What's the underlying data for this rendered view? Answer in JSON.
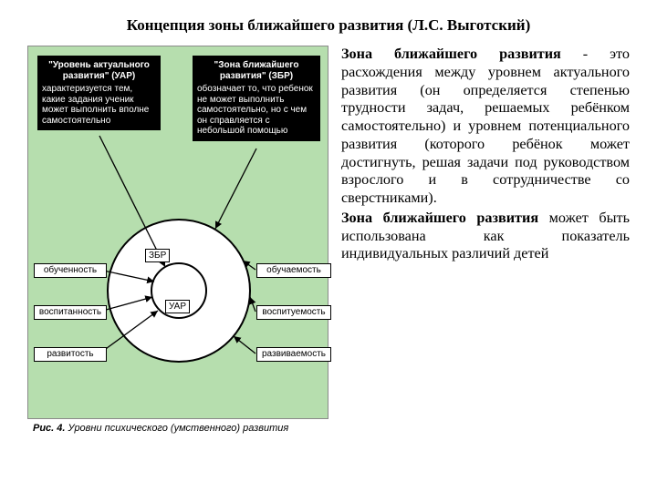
{
  "title": "Концепция зоны ближайшего развития (Л.С. Выготский)",
  "diagram": {
    "bg_color": "#b6deae",
    "caption_bold": "Рис. 4.",
    "caption_rest": "Уровни психического (умственного) развития",
    "top_left": {
      "header": "\"Уровень актуального развития\" (УАР)",
      "body": "характеризуется тем, какие задания ученик может выполнить вполне самостоятельно"
    },
    "top_right": {
      "header": "\"Зона ближайшего развития\" (ЗБР)",
      "body": "обозначает то, что ребенок не может выполнить самостоятельно, но с чем он справляется с небольшой помощью"
    },
    "zbr_label": "ЗБР",
    "uar_label": "УАР",
    "left_boxes": [
      "обученность",
      "воспитанность",
      "развитость"
    ],
    "right_boxes": [
      "обучаемость",
      "воспитуемость",
      "развиваемость"
    ],
    "circle_outer_stroke": "#000000",
    "circle_inner_stroke": "#000000",
    "arrow_color": "#000000"
  },
  "paragraph1_lead": " Зона ближайшего развития",
  "paragraph1_rest": " - это расхождения между уровнем актуального развития (он определяется степенью трудности задач, решаемых ребёнком самостоятельно) и уровнем потенциального развития (которого ребёнок может достигнуть, решая задачи под руководством взрослого и в сотрудничестве со сверстниками).",
  "paragraph2_lead": "Зона ближайшего развития",
  "paragraph2_rest": " может быть использована как показатель индивидуальных различий детей",
  "typography": {
    "title_fontsize": 17,
    "body_fontsize": 16.2,
    "diagram_font": "Arial",
    "body_font": "Times New Roman"
  }
}
